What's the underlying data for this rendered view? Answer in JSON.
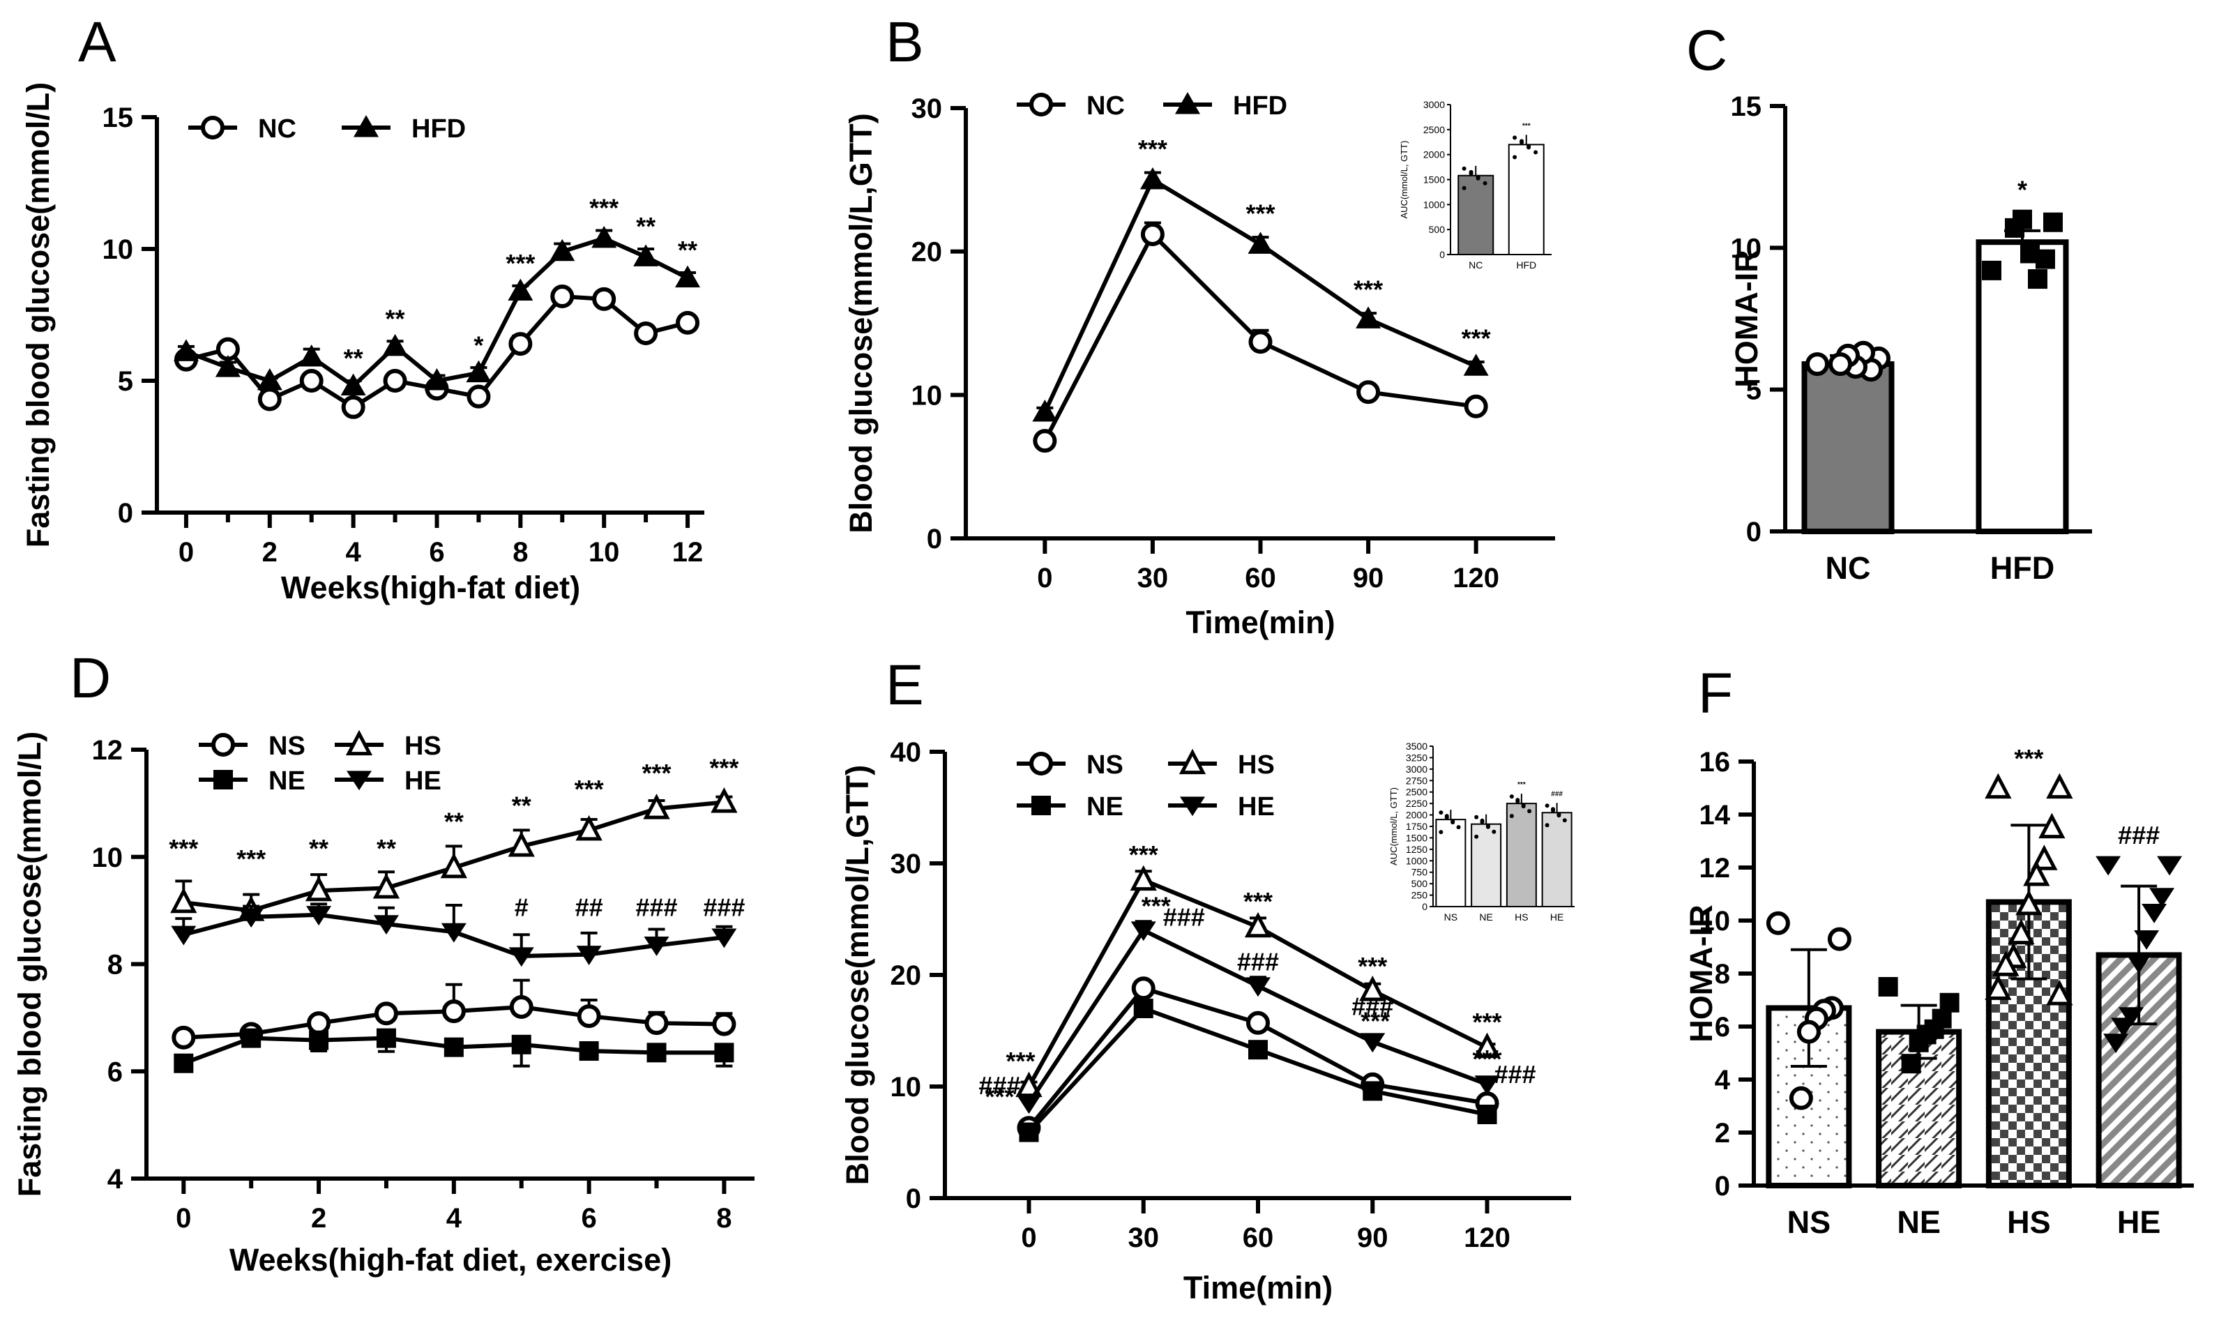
{
  "chart_data": [
    {
      "id": "A",
      "type": "line",
      "panel_label": "A",
      "xlabel": "Weeks(high-fat diet)",
      "ylabel": "Fasting blood glucose(mmol/L)",
      "x": [
        0,
        1,
        2,
        3,
        4,
        5,
        6,
        7,
        8,
        9,
        10,
        11,
        12
      ],
      "xticks": [
        0,
        2,
        4,
        6,
        8,
        10,
        12
      ],
      "yticks": [
        0,
        5,
        10,
        15
      ],
      "xlim": [
        -0.7,
        12.4
      ],
      "ylim": [
        0,
        15
      ],
      "series": [
        {
          "name": "NC",
          "marker": "circle-open",
          "values": [
            5.8,
            6.2,
            4.3,
            5.0,
            4.0,
            5.0,
            4.7,
            4.4,
            6.4,
            8.2,
            8.1,
            6.8,
            7.2
          ],
          "err": [
            0.2,
            0.2,
            0.2,
            0.2,
            0.2,
            0.2,
            0.2,
            0.2,
            0.3,
            0.2,
            0.2,
            0.2,
            0.2
          ]
        },
        {
          "name": "HFD",
          "marker": "triangle-filled",
          "values": [
            6.1,
            5.5,
            5.0,
            5.9,
            4.8,
            6.3,
            5.0,
            5.3,
            8.4,
            9.9,
            10.4,
            9.7,
            8.9
          ],
          "err": [
            0.2,
            0.2,
            0.1,
            0.3,
            0.2,
            0.2,
            0.2,
            0.2,
            0.2,
            0.3,
            0.3,
            0.3,
            0.2
          ]
        }
      ],
      "annotations": [
        {
          "x": 4,
          "text": "**"
        },
        {
          "x": 5,
          "text": "**"
        },
        {
          "x": 7,
          "text": "*"
        },
        {
          "x": 8,
          "text": "***"
        },
        {
          "x": 10,
          "text": "***"
        },
        {
          "x": 11,
          "text": "**"
        },
        {
          "x": 12,
          "text": "**"
        }
      ]
    },
    {
      "id": "B",
      "type": "line",
      "panel_label": "B",
      "xlabel": "Time(min)",
      "ylabel": "Blood glucose(mmol/L,GTT)",
      "x": [
        0,
        30,
        60,
        90,
        120
      ],
      "xticks": [
        0,
        30,
        60,
        90,
        120
      ],
      "yticks": [
        0,
        10,
        20,
        30
      ],
      "xlim": [
        -22,
        142
      ],
      "ylim": [
        0,
        30
      ],
      "series": [
        {
          "name": "NC",
          "marker": "circle-open",
          "values": [
            6.8,
            21.2,
            13.7,
            10.2,
            9.2
          ],
          "err": [
            0.3,
            0.8,
            0.8,
            0.3,
            0.3
          ]
        },
        {
          "name": "HFD",
          "marker": "triangle-filled",
          "values": [
            8.8,
            25.0,
            20.5,
            15.3,
            12.0
          ],
          "err": [
            0.3,
            0.5,
            0.5,
            0.4,
            0.3
          ]
        }
      ],
      "annotations": [
        {
          "x": 30,
          "text": "***"
        },
        {
          "x": 60,
          "text": "***"
        },
        {
          "x": 90,
          "text": "***"
        },
        {
          "x": 120,
          "text": "***"
        }
      ],
      "inset": {
        "type": "bar",
        "ylabel": "AUC(mmol/L, GTT)",
        "categories": [
          "NC",
          "HFD"
        ],
        "values": [
          1580,
          2200
        ],
        "yticks": [
          0,
          500,
          1000,
          1500,
          2000,
          2500,
          3000
        ],
        "ylim": [
          0,
          3000
        ],
        "sig": [
          "",
          "***"
        ]
      }
    },
    {
      "id": "C",
      "type": "bar",
      "panel_label": "C",
      "ylabel": "HOMA-IR",
      "categories": [
        "NC",
        "HFD"
      ],
      "values": [
        5.9,
        10.2
      ],
      "err": [
        0.3,
        0.4
      ],
      "yticks": [
        0,
        5,
        10,
        15
      ],
      "ylim": [
        0,
        15
      ],
      "points": [
        [
          5.9,
          6.1,
          5.7,
          6.3,
          5.8,
          6.2,
          5.9
        ],
        [
          9.2,
          10.9,
          9.6,
          8.9,
          9.8,
          11.0,
          10.7
        ]
      ],
      "sig": [
        "",
        "*"
      ]
    },
    {
      "id": "D",
      "type": "line",
      "panel_label": "D",
      "xlabel": "Weeks(high-fat diet, exercise)",
      "ylabel": "Fasting blood glucose(mmol/L)",
      "x": [
        0,
        1,
        2,
        3,
        4,
        5,
        6,
        7,
        8
      ],
      "xticks": [
        0,
        2,
        4,
        6,
        8
      ],
      "yticks": [
        4,
        6,
        8,
        10,
        12
      ],
      "xlim": [
        -0.55,
        8.45
      ],
      "ylim": [
        4,
        12
      ],
      "series": [
        {
          "name": "NS",
          "marker": "circle-open",
          "values": [
            6.63,
            6.7,
            6.9,
            7.08,
            7.12,
            7.2,
            7.03,
            6.9,
            6.88
          ],
          "err": [
            0.05,
            0.05,
            0.08,
            0.1,
            0.5,
            0.5,
            0.3,
            0.2,
            0.2
          ]
        },
        {
          "name": "NE",
          "marker": "square-filled",
          "values": [
            6.15,
            6.62,
            6.58,
            6.62,
            6.45,
            6.5,
            6.38,
            6.35,
            6.35
          ],
          "err": [
            0.05,
            0.08,
            0.2,
            0.25,
            0.05,
            0.4,
            0.1,
            0.15,
            0.25
          ]
        },
        {
          "name": "HS",
          "marker": "triangle-open",
          "values": [
            9.15,
            9.0,
            9.37,
            9.42,
            9.8,
            10.2,
            10.5,
            10.9,
            11.02
          ],
          "err": [
            0.4,
            0.3,
            0.3,
            0.3,
            0.4,
            0.3,
            0.2,
            0.15,
            0.1
          ]
        },
        {
          "name": "HE",
          "marker": "triangle-down-filled",
          "values": [
            8.55,
            8.88,
            8.92,
            8.75,
            8.6,
            8.15,
            8.18,
            8.35,
            8.5
          ],
          "err": [
            0.3,
            0.2,
            0.2,
            0.3,
            0.5,
            0.4,
            0.4,
            0.3,
            0.2
          ]
        }
      ],
      "annotations": [
        {
          "x": 0,
          "text": "***",
          "y": 10.0
        },
        {
          "x": 1,
          "text": "***",
          "y": 9.8
        },
        {
          "x": 2,
          "text": "**",
          "y": 10.0
        },
        {
          "x": 3,
          "text": "**",
          "y": 10.0
        },
        {
          "x": 4,
          "text": "**",
          "y": 10.5
        },
        {
          "x": 5,
          "text": "**",
          "y": 10.8
        },
        {
          "x": 6,
          "text": "***",
          "y": 11.1
        },
        {
          "x": 7,
          "text": "***",
          "y": 11.4
        },
        {
          "x": 8,
          "text": "***",
          "y": 11.5
        },
        {
          "x": 5,
          "text": "#",
          "y": 8.9
        },
        {
          "x": 6,
          "text": "##",
          "y": 8.9
        },
        {
          "x": 7,
          "text": "###",
          "y": 8.9
        },
        {
          "x": 8,
          "text": "###",
          "y": 8.9
        }
      ]
    },
    {
      "id": "E",
      "type": "line",
      "panel_label": "E",
      "xlabel": "Time(min)",
      "ylabel": "Blood glucose(mmol/L,GTT)",
      "x": [
        0,
        30,
        60,
        90,
        120
      ],
      "xticks": [
        0,
        30,
        60,
        90,
        120
      ],
      "yticks": [
        0,
        10,
        20,
        30,
        40
      ],
      "xlim": [
        -22,
        142
      ],
      "ylim": [
        0,
        40
      ],
      "series": [
        {
          "name": "NS",
          "marker": "circle-open",
          "values": [
            6.3,
            18.8,
            15.7,
            10.2,
            8.5
          ],
          "err": [
            0.2,
            0.3,
            0.3,
            0.3,
            0.2
          ]
        },
        {
          "name": "NE",
          "marker": "square-filled",
          "values": [
            5.9,
            17.0,
            13.3,
            9.6,
            7.5
          ],
          "err": [
            0.2,
            0.3,
            0.3,
            0.2,
            0.2
          ]
        },
        {
          "name": "HS",
          "marker": "triangle-open",
          "values": [
            10.0,
            28.5,
            24.3,
            18.6,
            13.5
          ],
          "err": [
            0.4,
            0.8,
            0.8,
            0.6,
            0.3
          ]
        },
        {
          "name": "HE",
          "marker": "triangle-down-filled",
          "values": [
            8.5,
            24.0,
            19.0,
            14.0,
            10.2
          ],
          "err": [
            0.4,
            0.8,
            0.8,
            0.6,
            0.3
          ]
        }
      ],
      "annotations": [
        {
          "x": 0,
          "text": "***",
          "y": 11.5,
          "dx": -12
        },
        {
          "x": 0,
          "text": "###",
          "y": 9.3,
          "dx": -42
        },
        {
          "x": 0,
          "text": "***",
          "y": 8.3,
          "dx": -42
        },
        {
          "x": 30,
          "text": "***",
          "y": 30.0,
          "dx": 0
        },
        {
          "x": 30,
          "text": "***",
          "y": 25.4,
          "dx": 18
        },
        {
          "x": 30,
          "text": "###",
          "y": 24.4,
          "dx": 58
        },
        {
          "x": 60,
          "text": "***",
          "y": 25.8,
          "dx": 0
        },
        {
          "x": 60,
          "text": "###",
          "y": 20.4,
          "dx": 0
        },
        {
          "x": 90,
          "text": "***",
          "y": 20.0,
          "dx": 0
        },
        {
          "x": 90,
          "text": "###",
          "y": 16.4,
          "dx": 0
        },
        {
          "x": 90,
          "text": "***",
          "y": 15.1,
          "dx": 4
        },
        {
          "x": 120,
          "text": "***",
          "y": 15.0,
          "dx": 0
        },
        {
          "x": 120,
          "text": "***",
          "y": 11.7,
          "dx": 0
        },
        {
          "x": 120,
          "text": "###",
          "y": 10.3,
          "dx": 40
        }
      ],
      "inset": {
        "type": "bar",
        "ylabel": "AUC(mmol/L, GTT)",
        "categories": [
          "NS",
          "NE",
          "HS",
          "HE"
        ],
        "values": [
          1900,
          1800,
          2250,
          2050
        ],
        "yticks": [
          0,
          250,
          500,
          750,
          1000,
          1250,
          1500,
          1750,
          2000,
          2250,
          2500,
          2750,
          3000,
          3250,
          3500
        ],
        "ylim": [
          0,
          3500
        ],
        "sig": [
          "",
          "",
          "***",
          "###"
        ]
      }
    },
    {
      "id": "F",
      "type": "bar",
      "panel_label": "F",
      "ylabel": "HOMA-IR",
      "categories": [
        "NS",
        "NE",
        "HS",
        "HE"
      ],
      "values": [
        6.7,
        5.8,
        10.7,
        8.7
      ],
      "err": [
        2.2,
        1.0,
        2.9,
        2.6
      ],
      "yticks": [
        0,
        2,
        4,
        6,
        8,
        10,
        12,
        14,
        16
      ],
      "ylim": [
        0,
        16
      ],
      "points": [
        [
          9.9,
          9.3,
          6.7,
          6.6,
          6.3,
          5.8,
          3.3
        ],
        [
          7.5,
          6.9,
          6.3,
          5.9,
          5.7,
          5.4,
          4.6
        ],
        [
          15.0,
          15.0,
          13.5,
          12.3,
          11.7,
          10.6,
          9.5,
          8.6,
          8.3,
          7.4,
          7.2
        ],
        [
          12.1,
          12.1,
          10.9,
          10.3,
          9.3,
          8.4,
          6.4,
          6.0,
          5.4
        ]
      ],
      "sig": [
        "",
        "",
        "***",
        "###"
      ]
    }
  ],
  "legends": {
    "A": [
      "NC",
      "HFD"
    ],
    "B": [
      "NC",
      "HFD"
    ],
    "D": [
      "NS",
      "HS",
      "NE",
      "HE"
    ],
    "E": [
      "NS",
      "HS",
      "NE",
      "HE"
    ]
  }
}
